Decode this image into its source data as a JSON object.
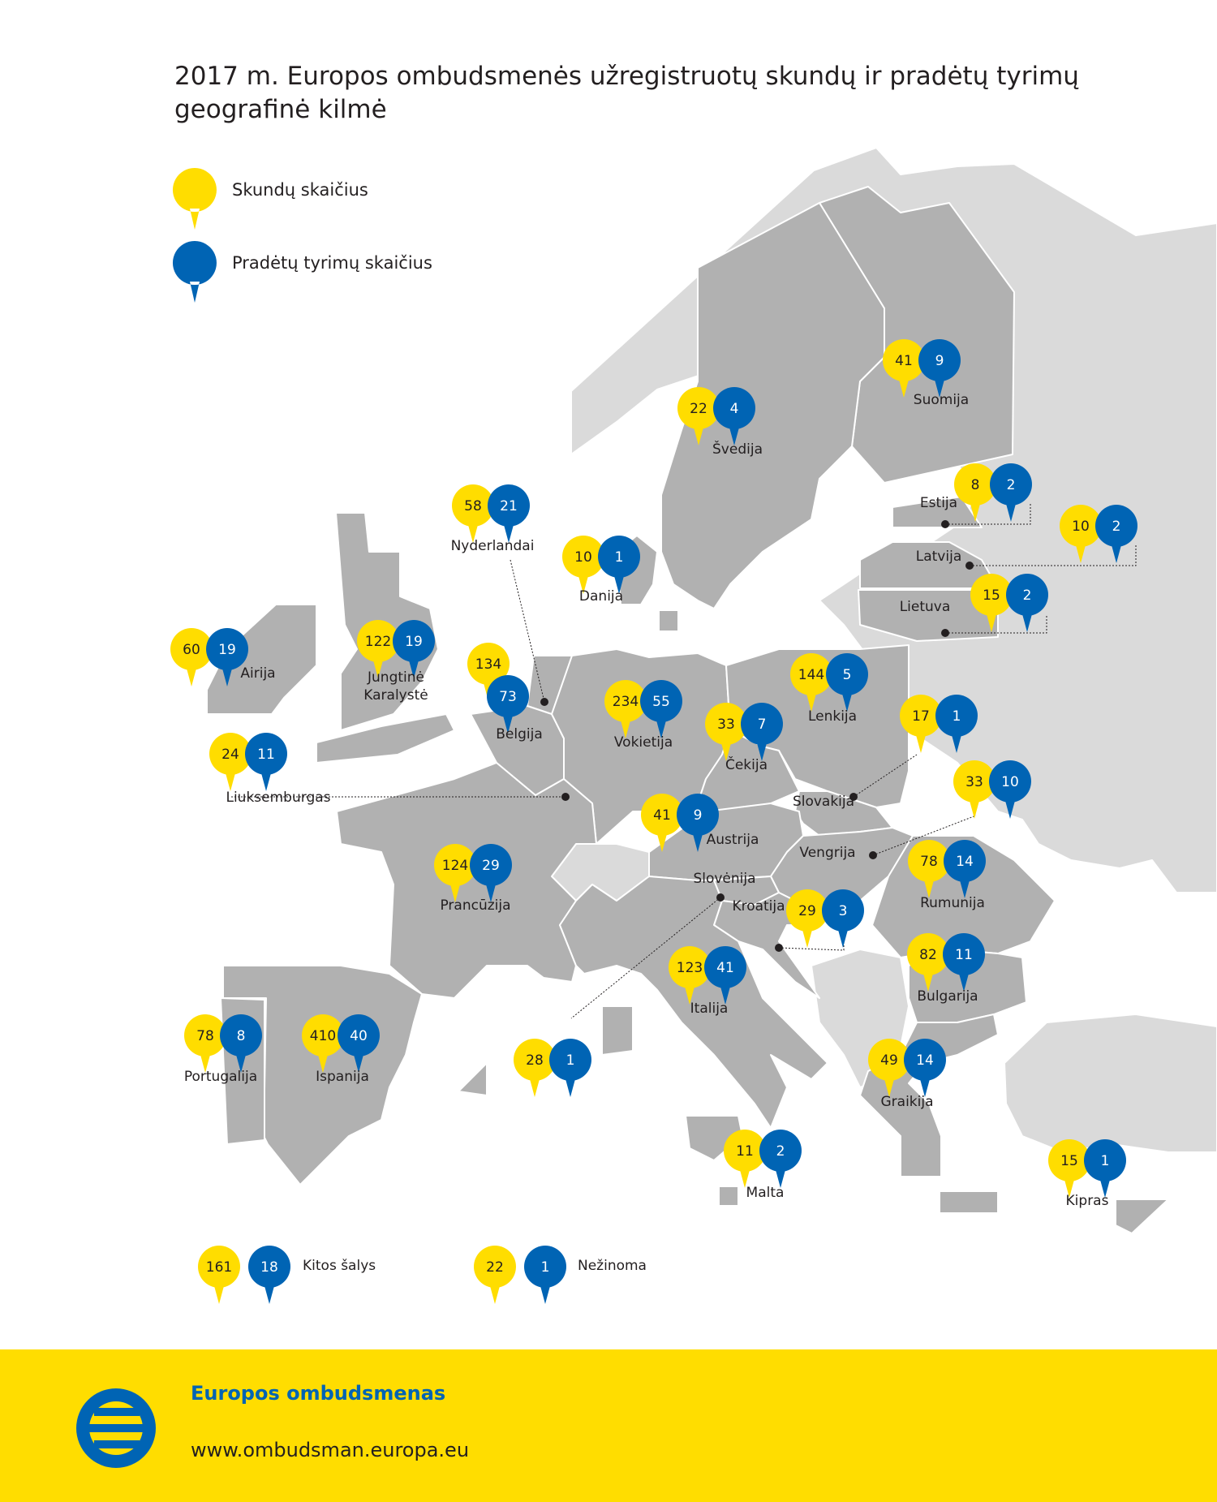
{
  "title": "2017 m. Europos ombudsmenės užregistruotų skundų ir pradėtų tyrimų geografinė kilmė",
  "legend": {
    "complaints": "Skundų skaičius",
    "inquiries": "Pradėtų tyrimų skaičius"
  },
  "colors": {
    "complaints": "#ffdd00",
    "inquiries": "#0064b4",
    "eu_country": "#b1b1b1",
    "non_eu_country": "#dadada",
    "footer": "#ffdd00"
  },
  "countries": [
    {
      "name": "Suomija",
      "complaints": "41",
      "inquiries": "9"
    },
    {
      "name": "Švedija",
      "complaints": "22",
      "inquiries": "4"
    },
    {
      "name": "Estija",
      "complaints": "8",
      "inquiries": "2"
    },
    {
      "name": "Latvija",
      "complaints": "10",
      "inquiries": "2"
    },
    {
      "name": "Lietuva",
      "complaints": "15",
      "inquiries": "2"
    },
    {
      "name": "Nyderlandai",
      "complaints": "58",
      "inquiries": "21"
    },
    {
      "name": "Danija",
      "complaints": "10",
      "inquiries": "1"
    },
    {
      "name": "Airija",
      "complaints": "60",
      "inquiries": "19"
    },
    {
      "name": "Jungtinė Karalystė",
      "complaints": "122",
      "inquiries": "19"
    },
    {
      "name": "Belgija",
      "complaints": "134",
      "inquiries": "73"
    },
    {
      "name": "Vokietija",
      "complaints": "234",
      "inquiries": "55"
    },
    {
      "name": "Lenkija",
      "complaints": "144",
      "inquiries": "5"
    },
    {
      "name": "Čekija",
      "complaints": "33",
      "inquiries": "7"
    },
    {
      "name": "Slovakija",
      "complaints": "17",
      "inquiries": "1"
    },
    {
      "name": "Vengrija",
      "complaints": "33",
      "inquiries": "10"
    },
    {
      "name": "Liuksemburgas",
      "complaints": "24",
      "inquiries": "11"
    },
    {
      "name": "Austrija",
      "complaints": "41",
      "inquiries": "9"
    },
    {
      "name": "Prancūzija",
      "complaints": "124",
      "inquiries": "29"
    },
    {
      "name": "Rumunija",
      "complaints": "78",
      "inquiries": "14"
    },
    {
      "name": "Slovėnija",
      "complaints": "28",
      "inquiries": "1"
    },
    {
      "name": "Kroatija",
      "complaints": "29",
      "inquiries": "3"
    },
    {
      "name": "Italija",
      "complaints": "123",
      "inquiries": "41"
    },
    {
      "name": "Bulgarija",
      "complaints": "82",
      "inquiries": "11"
    },
    {
      "name": "Portugalija",
      "complaints": "78",
      "inquiries": "8"
    },
    {
      "name": "Ispanija",
      "complaints": "410",
      "inquiries": "40"
    },
    {
      "name": "Graikija",
      "complaints": "49",
      "inquiries": "14"
    },
    {
      "name": "Malta",
      "complaints": "11",
      "inquiries": "2"
    },
    {
      "name": "Kipras",
      "complaints": "15",
      "inquiries": "1"
    }
  ],
  "other": [
    {
      "name": "Kitos šalys",
      "complaints": "161",
      "inquiries": "18"
    },
    {
      "name": "Nežinoma",
      "complaints": "22",
      "inquiries": "1"
    }
  ],
  "footer": {
    "organization": "Europos ombudsmenas",
    "url": "www.ombudsman.europa.eu"
  }
}
